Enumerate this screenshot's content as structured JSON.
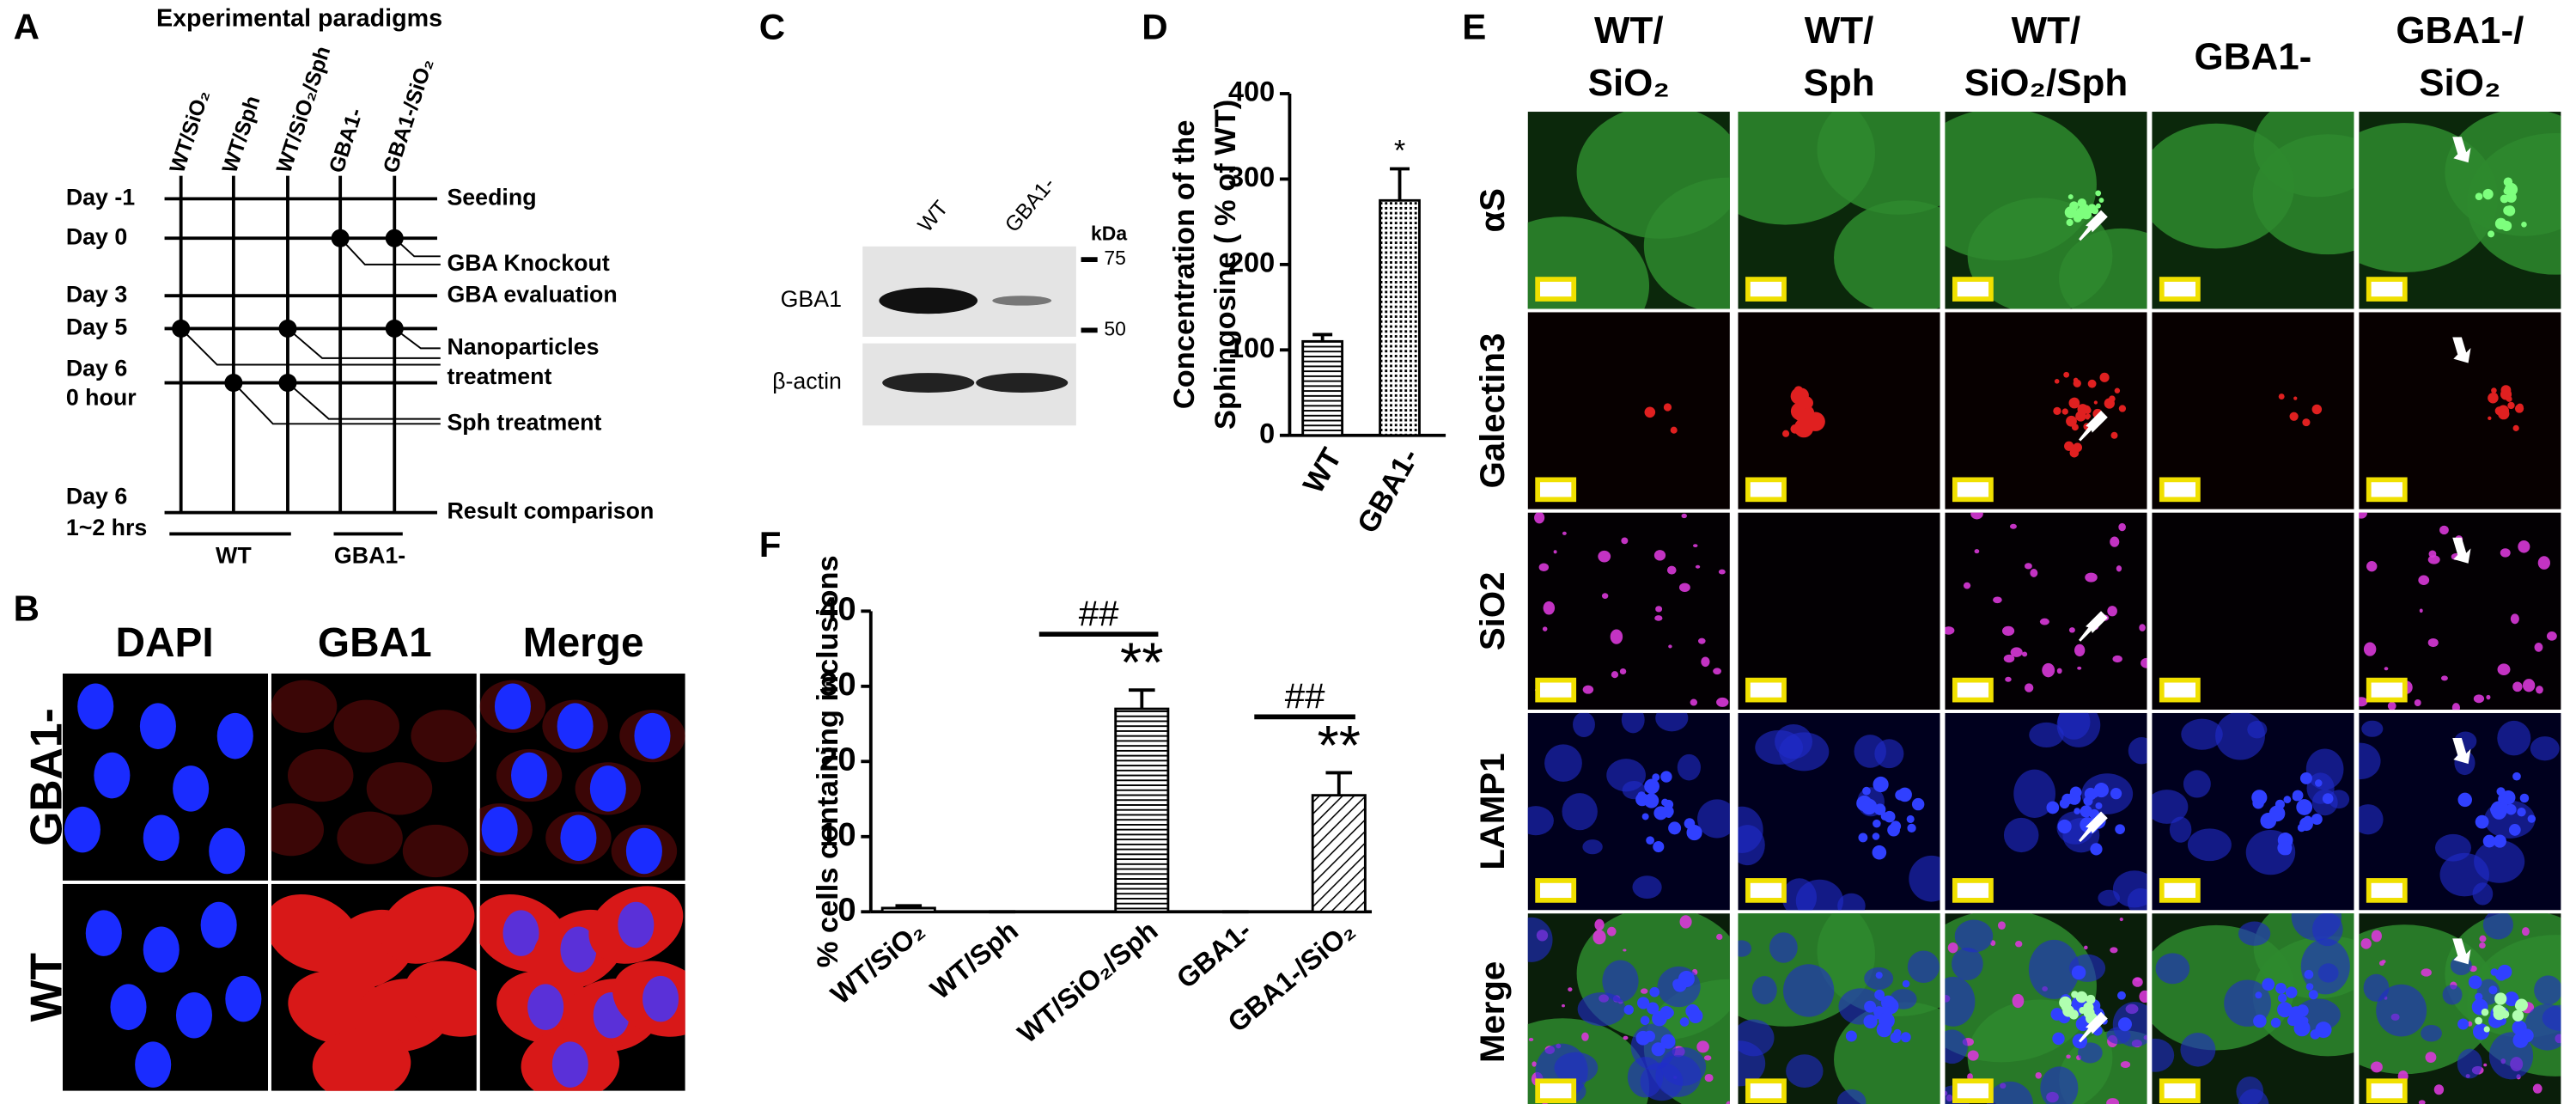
{
  "panel_a": {
    "label": "A",
    "title": "Experimental paradigms",
    "conditions": [
      "WT/SiO₂",
      "WT/Sph",
      "WT/SiO₂/Sph",
      "GBA1-",
      "GBA1-/SiO₂"
    ],
    "days": [
      "Day -1",
      "Day  0",
      "Day  3",
      "Day  5",
      "Day  6",
      "0 hour",
      "Day  6",
      "1~2 hrs"
    ],
    "events": [
      "Seeding",
      "GBA Knockout",
      "GBA evaluation",
      "Nanoparticles",
      "treatment",
      "Sph treatment",
      "Result comparison"
    ],
    "groups": [
      "WT",
      "GBA1-"
    ]
  },
  "panel_b": {
    "label": "B",
    "columns": [
      "DAPI",
      "GBA1",
      "Merge"
    ],
    "rows": [
      "GBA1-",
      "WT"
    ]
  },
  "panel_c": {
    "label": "C",
    "lanes": [
      "WT",
      "GBA1-"
    ],
    "unit": "kDa",
    "markers": [
      "75",
      "50"
    ],
    "proteins": [
      "GBA1",
      "β-actin"
    ]
  },
  "panel_e": {
    "label": "E",
    "columns": [
      [
        "WT/",
        "SiO₂"
      ],
      [
        "WT/",
        "Sph"
      ],
      [
        "WT/",
        "SiO₂/Sph"
      ],
      [
        "GBA1-"
      ],
      [
        "GBA1-/",
        "SiO₂"
      ]
    ],
    "rows": [
      "αS",
      "Galectin3",
      "SiO2",
      "LAMP1",
      "Merge"
    ]
  },
  "chart_data": [
    {
      "type": "bar",
      "label": "D",
      "y_label": [
        "Concentration of the",
        "Sphingosine ( % of WT)"
      ],
      "categories": [
        "WT",
        "GBA1-"
      ],
      "values": [
        110,
        275
      ],
      "errors": [
        8,
        37
      ],
      "significance": [
        null,
        "*"
      ],
      "patterns": [
        "horizontal",
        "dotted"
      ],
      "color": "#000000",
      "ylim": [
        0,
        400
      ],
      "yticks": [
        0,
        100,
        200,
        300,
        400
      ]
    },
    {
      "type": "bar",
      "label": "F",
      "y_label": "% cells containing inclusions",
      "categories": [
        "WT/SiO₂",
        "WT/Sph",
        "WT/SiO₂/Sph",
        "GBA1-",
        "GBA1-/SiO₂"
      ],
      "values": [
        0.5,
        0,
        27,
        0,
        15.5
      ],
      "errors": [
        0.3,
        0,
        2.5,
        0,
        3
      ],
      "significance": [
        null,
        null,
        "**",
        null,
        "**"
      ],
      "comparisons": [
        null,
        null,
        "##",
        null,
        "##"
      ],
      "patterns": [
        "horizontal",
        "horizontal",
        "horizontal",
        "horizontal",
        "diagonal"
      ],
      "color": "#000000",
      "ylim": [
        0,
        40
      ],
      "yticks": [
        0,
        10,
        20,
        30,
        40
      ]
    }
  ]
}
